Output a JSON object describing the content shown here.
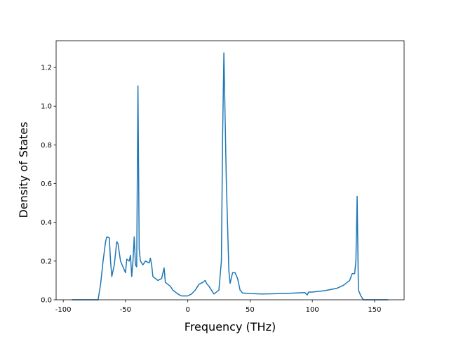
{
  "chart_data": {
    "type": "line",
    "x_label": "Frequency (THz)",
    "y_label": "Density of States",
    "x": [
      -93,
      -72,
      -70,
      -68,
      -66,
      -65,
      -63,
      -62,
      -61,
      -59,
      -57,
      -56,
      -54,
      -52,
      -50,
      -49,
      -47,
      -46,
      -45,
      -44,
      -43,
      -42,
      -41,
      -40,
      -39,
      -38,
      -36,
      -34,
      -31,
      -30,
      -29,
      -28,
      -26,
      -24,
      -21,
      -19,
      -18,
      -16,
      -14,
      -12,
      -8,
      -5,
      0,
      3,
      6,
      9,
      12,
      14,
      15,
      17,
      19,
      21,
      23,
      25,
      27,
      28,
      29,
      31,
      33,
      34,
      36,
      38,
      40,
      42,
      44,
      50,
      60,
      80,
      94,
      96,
      97,
      100,
      110,
      120,
      125,
      130,
      132,
      134,
      135,
      136,
      137,
      139,
      141,
      161
    ],
    "series": [
      {
        "name": "DOS",
        "color": "#1f77b4",
        "values": [
          0,
          0,
          0.08,
          0.2,
          0.3,
          0.325,
          0.32,
          0.2,
          0.12,
          0.18,
          0.3,
          0.29,
          0.2,
          0.17,
          0.14,
          0.21,
          0.2,
          0.23,
          0.12,
          0.2,
          0.325,
          0.18,
          0.17,
          1.105,
          0.26,
          0.2,
          0.18,
          0.2,
          0.19,
          0.215,
          0.18,
          0.12,
          0.11,
          0.1,
          0.11,
          0.165,
          0.09,
          0.08,
          0.07,
          0.05,
          0.03,
          0.02,
          0.02,
          0.03,
          0.05,
          0.08,
          0.09,
          0.1,
          0.085,
          0.07,
          0.05,
          0.03,
          0.04,
          0.05,
          0.2,
          0.85,
          1.275,
          0.6,
          0.15,
          0.085,
          0.14,
          0.14,
          0.11,
          0.05,
          0.035,
          0.032,
          0.03,
          0.033,
          0.037,
          0.025,
          0.04,
          0.04,
          0.047,
          0.06,
          0.075,
          0.1,
          0.135,
          0.135,
          0.2,
          0.535,
          0.05,
          0.02,
          0,
          0
        ]
      }
    ],
    "xlim": [
      -105.7,
      173.7
    ],
    "xticks": [
      -100,
      -50,
      0,
      50,
      100,
      150
    ],
    "ylim": [
      0,
      1.338
    ],
    "yticks": [
      {
        "value": 0,
        "label": "0.0"
      },
      {
        "value": 0.2,
        "label": "0.2"
      },
      {
        "value": 0.4,
        "label": "0.4"
      },
      {
        "value": 0.6,
        "label": "0.6"
      },
      {
        "value": 0.8,
        "label": "0.8"
      },
      {
        "value": 1.0,
        "label": "1.0"
      },
      {
        "value": 1.2,
        "label": "1.2"
      }
    ]
  }
}
